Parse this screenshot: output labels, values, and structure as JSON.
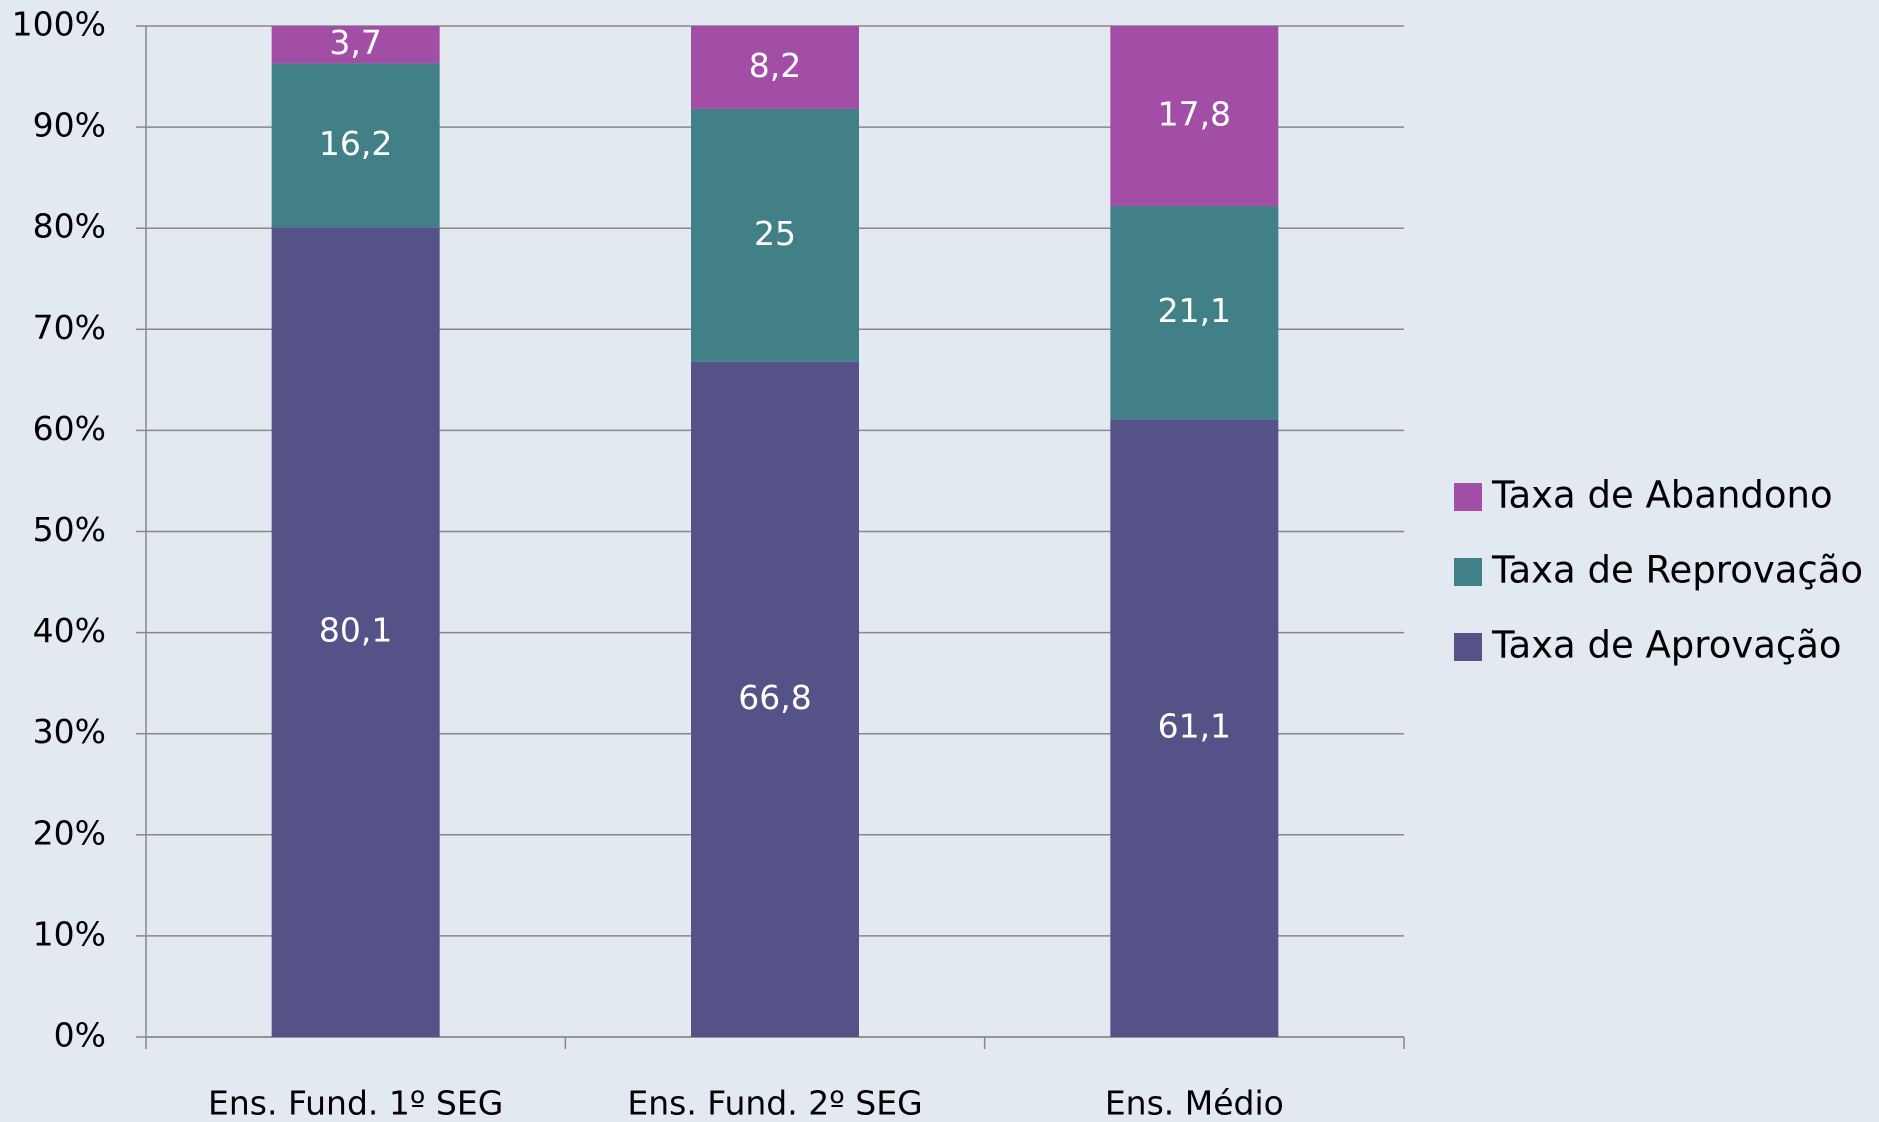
{
  "chart_data": {
    "type": "stacked_bar",
    "categories": [
      "Ens. Fund. 1º SEG",
      "Ens. Fund. 2º SEG",
      "Ens. Médio"
    ],
    "series": [
      {
        "name": "Taxa de Aprovação",
        "color": "#555287",
        "values": [
          80.1,
          66.8,
          61.1
        ],
        "value_labels": [
          "80,1",
          "66,8",
          "61,1"
        ]
      },
      {
        "name": "Taxa de Reprovação",
        "color": "#428087",
        "values": [
          16.2,
          25,
          21.1
        ],
        "value_labels": [
          "16,2",
          "25",
          "21,1"
        ]
      },
      {
        "name": "Taxa de Abandono",
        "color": "#a24ea6",
        "values": [
          3.7,
          8.2,
          17.8
        ],
        "value_labels": [
          "3,7",
          "8,2",
          "17,8"
        ]
      }
    ],
    "ylim": [
      0,
      100
    ],
    "yticks": [
      {
        "value": 0,
        "label": "0%"
      },
      {
        "value": 10,
        "label": "10%"
      },
      {
        "value": 20,
        "label": "20%"
      },
      {
        "value": 30,
        "label": "30%"
      },
      {
        "value": 40,
        "label": "40%"
      },
      {
        "value": 50,
        "label": "50%"
      },
      {
        "value": 60,
        "label": "60%"
      },
      {
        "value": 70,
        "label": "70%"
      },
      {
        "value": 80,
        "label": "80%"
      },
      {
        "value": 90,
        "label": "90%"
      },
      {
        "value": 100,
        "label": "100%"
      }
    ],
    "grid": true,
    "legend": "right"
  }
}
